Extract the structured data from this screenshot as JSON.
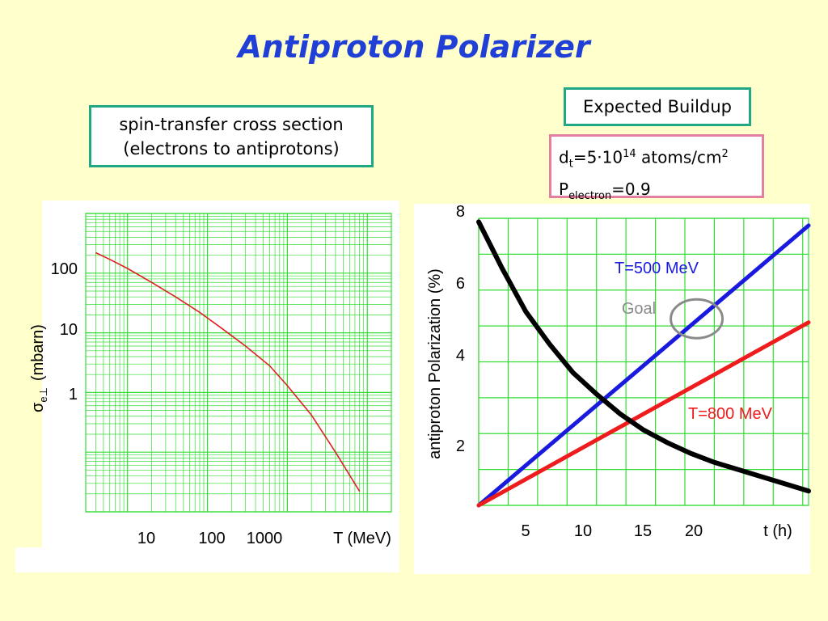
{
  "title": "Antiproton Polarizer",
  "box_cross_section": {
    "line1": "spin-transfer cross section",
    "line2": "(electrons to antiprotons)"
  },
  "box_buildup": {
    "label": "Expected Buildup"
  },
  "box_params": {
    "d_base": "d",
    "d_sub": "t",
    "d_value": "=5·10",
    "d_exp": "14",
    "d_unit": " atoms/cm",
    "d_unit_exp": "2",
    "p_base": "P",
    "p_sub": "electron",
    "p_value": "=0.9"
  },
  "colors": {
    "background": "#ffffcc",
    "title": "#1f3fd6",
    "grid": "#33dd33",
    "sigma_curve": "#e02020",
    "t500": "#1a1adf",
    "t800": "#ee1c1c",
    "decay_curve": "#000000",
    "goal_circle": "#8a8a8a",
    "box_teal": "#1fa884",
    "box_pink": "#e57fa1"
  },
  "chart_data": [
    {
      "type": "line",
      "xlabel": "T (MeV)",
      "ylabel_symbol": "σ",
      "ylabel_sub": "e⊥",
      "ylabel_unit": "(mbarn)",
      "x_ticks": [
        "10",
        "100",
        "1000"
      ],
      "y_ticks": [
        "100",
        "10",
        "1"
      ],
      "x_scale": "log",
      "y_scale": "log",
      "xlim": [
        3,
        20000
      ],
      "ylim": [
        0.01,
        1000
      ],
      "grid": true,
      "series": [
        {
          "x": [
            4,
            6,
            10,
            20,
            40,
            80,
            150,
            300,
            600,
            1000,
            2000,
            4000,
            8000
          ],
          "values": [
            220,
            170,
            120,
            70,
            40,
            22,
            12,
            6,
            2.8,
            1.3,
            0.42,
            0.1,
            0.022
          ]
        }
      ]
    },
    {
      "type": "line",
      "ylabel": "antiproton Polarization (%)",
      "xlabel": "t (h)",
      "x_ticks": [
        "5",
        "10",
        "15",
        "20"
      ],
      "y_ticks": [
        "2",
        "4",
        "6",
        "8"
      ],
      "xlim": [
        0,
        28
      ],
      "ylim": [
        0,
        8
      ],
      "grid": true,
      "annotations": [
        "T=500 MeV",
        "T=800 MeV",
        "Goal"
      ],
      "series": [
        {
          "name": "T=500 MeV",
          "x": [
            0,
            28
          ],
          "values": [
            0,
            7.8
          ]
        },
        {
          "name": "T=800 MeV",
          "x": [
            0,
            28
          ],
          "values": [
            0,
            5.1
          ]
        },
        {
          "x": [
            0,
            2,
            4,
            6,
            8,
            10,
            12,
            14,
            16,
            18,
            20,
            22,
            24,
            26,
            28
          ],
          "values": [
            7.9,
            6.6,
            5.4,
            4.5,
            3.7,
            3.1,
            2.55,
            2.1,
            1.75,
            1.45,
            1.2,
            1.0,
            0.8,
            0.6,
            0.4
          ]
        }
      ],
      "goal_point": {
        "x": 18.5,
        "y": 5.2
      }
    }
  ]
}
